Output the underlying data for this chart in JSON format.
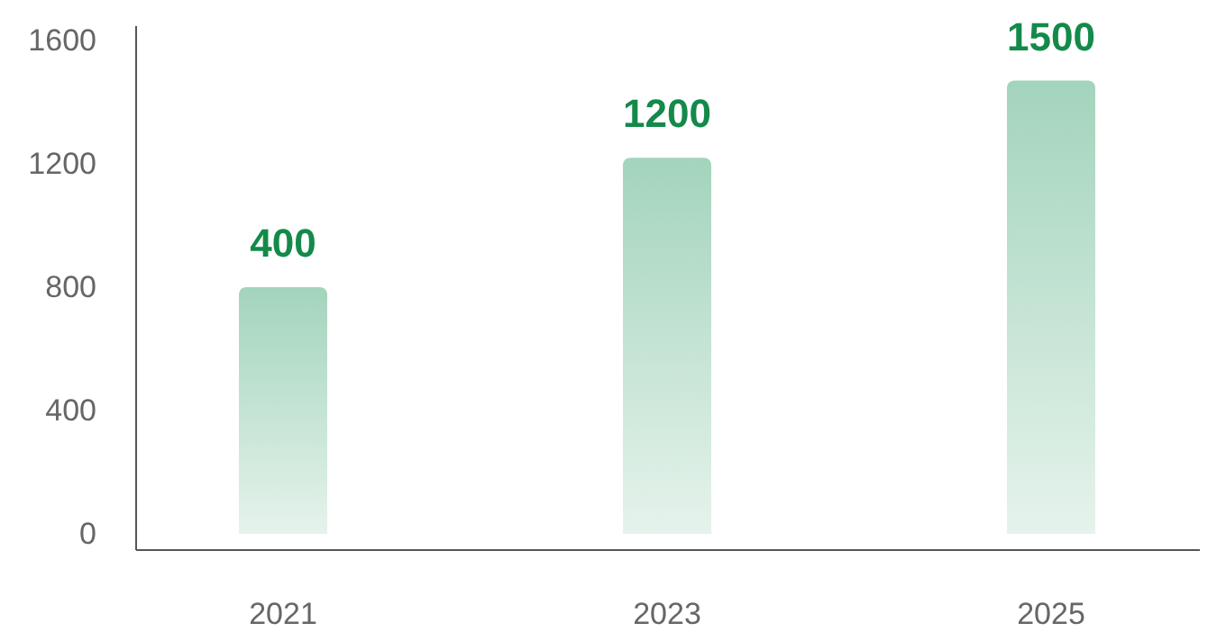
{
  "chart_data": {
    "type": "bar",
    "categories": [
      "2021",
      "2023",
      "2025"
    ],
    "series": [
      {
        "color": "#a3d4bc",
        "values": [
          800,
          1220,
          1470
        ]
      }
    ],
    "value_labels": [
      "400",
      "1200",
      "1500"
    ],
    "ylim": [
      -50,
      1650
    ],
    "yticks": [
      0,
      400,
      800,
      1200,
      1600
    ],
    "grid": false
  }
}
